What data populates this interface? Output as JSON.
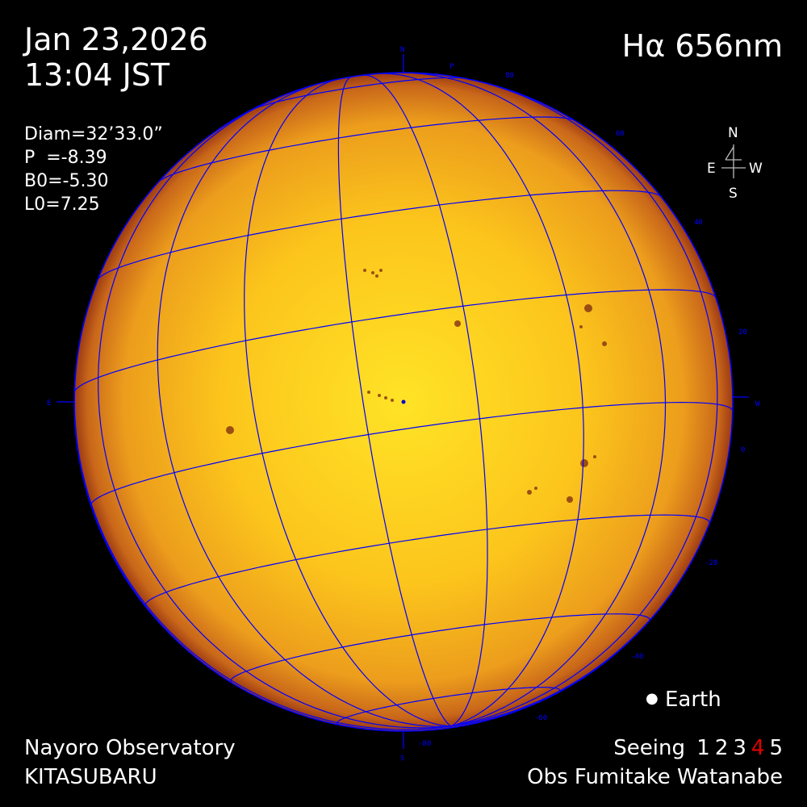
{
  "header": {
    "date": "Jan 23,2026",
    "time": "13:04 JST",
    "wavelength": "Hα 656nm"
  },
  "params": {
    "diam": "Diam=32’33.0”",
    "p": "P  =-8.39",
    "b0": "B0=-5.30",
    "l0": "L0=7.25"
  },
  "compass": {
    "n": "N",
    "e": "E",
    "w": "W",
    "s": "S"
  },
  "disk_labels": {
    "north": "N",
    "pole": "P",
    "east": "E",
    "west": "W",
    "south": "S",
    "latitudes": [
      "80",
      "60",
      "40",
      "20",
      "0",
      "-20",
      "-40",
      "-60",
      "-80"
    ]
  },
  "legend": {
    "earth": "Earth"
  },
  "footer": {
    "observatory": "Nayoro Observatory",
    "telescope": "KITASUBARU",
    "seeing_label": "Seeing",
    "seeing_scale": [
      "1",
      "2",
      "3",
      "4",
      "5"
    ],
    "seeing_value": 4,
    "observer": "Obs Fumitake Watanabe"
  },
  "colors": {
    "grid": "#0000ff",
    "disk_center": "#ffd21e",
    "disk_limb": "#b8501a",
    "seeing_highlight": "#e00000",
    "text": "#ffffff"
  }
}
